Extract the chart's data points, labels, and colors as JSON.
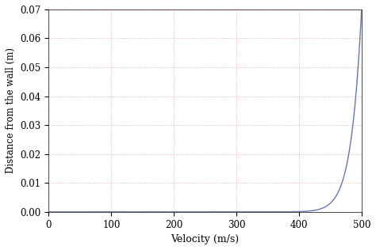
{
  "title": "",
  "xlabel": "Velocity (m/s)",
  "ylabel": "Distance from the wall (m)",
  "xlim": [
    0,
    500
  ],
  "ylim": [
    0.0,
    0.07
  ],
  "yticks": [
    0.0,
    0.01,
    0.02,
    0.03,
    0.04,
    0.05,
    0.06,
    0.07
  ],
  "xticks": [
    0,
    100,
    200,
    300,
    400,
    500
  ],
  "line_color": "#6677aa",
  "line_width": 1.0,
  "background_color": "#ffffff",
  "grid_color": "#cc4444",
  "grid_alpha": 0.45,
  "U_inf": 500,
  "delta": 0.07,
  "n": 30
}
